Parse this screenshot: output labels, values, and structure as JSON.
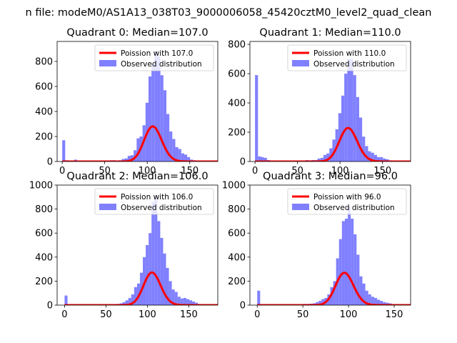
{
  "suptitle": "n file: modeM0/AS1A13_038T03_9000006058_45420cztM0_level2_quad_clean",
  "colors": {
    "poisson_line": "#ff0000",
    "observed_bars": "#8080ff",
    "axes": "#000000"
  },
  "chart_data": [
    {
      "type": "bar",
      "title": "Quadrant 0: Median=107.0",
      "median": 107.0,
      "xlim": [
        -6,
        183
      ],
      "ylim": [
        0,
        960
      ],
      "xticks": [
        0,
        50,
        100,
        150
      ],
      "yticks": [
        0,
        200,
        400,
        600,
        800
      ],
      "bin_width": 3.5,
      "legend": {
        "location": "top-right",
        "entries": [
          "Poission with 107.0",
          "Observed distribution"
        ]
      },
      "observed": [
        [
          0,
          170
        ],
        [
          3.5,
          10
        ],
        [
          7,
          5
        ],
        [
          10.5,
          3
        ],
        [
          14,
          15
        ],
        [
          17.5,
          5
        ],
        [
          21,
          3
        ],
        [
          56,
          10
        ],
        [
          59.5,
          10
        ],
        [
          63,
          8
        ],
        [
          66.5,
          10
        ],
        [
          70,
          20
        ],
        [
          73.5,
          25
        ],
        [
          77,
          45
        ],
        [
          80.5,
          50
        ],
        [
          84,
          90
        ],
        [
          87.5,
          185
        ],
        [
          91,
          200
        ],
        [
          94.5,
          290
        ],
        [
          98,
          470
        ],
        [
          101.5,
          680
        ],
        [
          105,
          780
        ],
        [
          108.5,
          880
        ],
        [
          112,
          840
        ],
        [
          115.5,
          690
        ],
        [
          119,
          570
        ],
        [
          122.5,
          380
        ],
        [
          126,
          240
        ],
        [
          129.5,
          180
        ],
        [
          133,
          115
        ],
        [
          136.5,
          100
        ],
        [
          140,
          65
        ],
        [
          143.5,
          55
        ],
        [
          147,
          35
        ],
        [
          150.5,
          15
        ],
        [
          154,
          10
        ],
        [
          157.5,
          8
        ],
        [
          161,
          5
        ],
        [
          164.5,
          3
        ],
        [
          168,
          3
        ]
      ]
    },
    {
      "type": "bar",
      "title": "Quadrant 1: Median=110.0",
      "median": 110.0,
      "xlim": [
        -6,
        183
      ],
      "ylim": [
        0,
        820
      ],
      "xticks": [
        0,
        50,
        100,
        150
      ],
      "yticks": [
        0,
        200,
        400,
        600,
        800
      ],
      "bin_width": 3.5,
      "legend": {
        "location": "top-right",
        "entries": [
          "Poission with 110.0",
          "Observed distribution"
        ]
      },
      "observed": [
        [
          0,
          590
        ],
        [
          3.5,
          35
        ],
        [
          7,
          30
        ],
        [
          10.5,
          25
        ],
        [
          14,
          10
        ],
        [
          17.5,
          5
        ],
        [
          59.5,
          10
        ],
        [
          63,
          8
        ],
        [
          66.5,
          10
        ],
        [
          70,
          10
        ],
        [
          73.5,
          20
        ],
        [
          77,
          25
        ],
        [
          80.5,
          45
        ],
        [
          84,
          55
        ],
        [
          87.5,
          90
        ],
        [
          91,
          150
        ],
        [
          94.5,
          220
        ],
        [
          98,
          330
        ],
        [
          101.5,
          450
        ],
        [
          105,
          600
        ],
        [
          108.5,
          700
        ],
        [
          112,
          700
        ],
        [
          115.5,
          590
        ],
        [
          119,
          440
        ],
        [
          122.5,
          300
        ],
        [
          126,
          170
        ],
        [
          129.5,
          105
        ],
        [
          133,
          70
        ],
        [
          136.5,
          60
        ],
        [
          140,
          45
        ],
        [
          143.5,
          30
        ],
        [
          147,
          30
        ],
        [
          150.5,
          20
        ],
        [
          154,
          15
        ],
        [
          157.5,
          8
        ],
        [
          161,
          5
        ],
        [
          164.5,
          3
        ],
        [
          168,
          3
        ],
        [
          171.5,
          2
        ]
      ]
    },
    {
      "type": "bar",
      "title": "Quadrant 2: Median=106.0",
      "median": 106.0,
      "xlim": [
        -9,
        185
      ],
      "ylim": [
        0,
        1000
      ],
      "xticks": [
        0,
        50,
        100,
        150
      ],
      "yticks": [
        0,
        200,
        400,
        600,
        800,
        1000
      ],
      "bin_width": 3.5,
      "legend": {
        "location": "top-right",
        "entries": [
          "Poission with 106.0",
          "Observed distribution"
        ]
      },
      "observed": [
        [
          0,
          80
        ],
        [
          3.5,
          8
        ],
        [
          7,
          5
        ],
        [
          10.5,
          3
        ],
        [
          56,
          5
        ],
        [
          59.5,
          8
        ],
        [
          63,
          10
        ],
        [
          66.5,
          15
        ],
        [
          70,
          25
        ],
        [
          73.5,
          40
        ],
        [
          77,
          60
        ],
        [
          80.5,
          90
        ],
        [
          84,
          150
        ],
        [
          87.5,
          180
        ],
        [
          91,
          270
        ],
        [
          94.5,
          400
        ],
        [
          98,
          500
        ],
        [
          101.5,
          600
        ],
        [
          105,
          860
        ],
        [
          108.5,
          910
        ],
        [
          112,
          700
        ],
        [
          115.5,
          560
        ],
        [
          119,
          430
        ],
        [
          122.5,
          310
        ],
        [
          126,
          200
        ],
        [
          129.5,
          130
        ],
        [
          133,
          110
        ],
        [
          136.5,
          70
        ],
        [
          140,
          55
        ],
        [
          143.5,
          60
        ],
        [
          147,
          50
        ],
        [
          150.5,
          40
        ],
        [
          154,
          30
        ],
        [
          157.5,
          20
        ],
        [
          161,
          10
        ],
        [
          164.5,
          8
        ],
        [
          168,
          5
        ],
        [
          171.5,
          3
        ]
      ]
    },
    {
      "type": "bar",
      "title": "Quadrant 3: Median=96.0",
      "median": 96.0,
      "xlim": [
        -8,
        168
      ],
      "ylim": [
        0,
        1000
      ],
      "xticks": [
        0,
        50,
        100,
        150
      ],
      "yticks": [
        0,
        200,
        400,
        600,
        800,
        1000
      ],
      "bin_width": 3.2,
      "legend": {
        "location": "top-right",
        "entries": [
          "Poission with 96.0",
          "Observed distribution"
        ]
      },
      "observed": [
        [
          0,
          120
        ],
        [
          3.2,
          8
        ],
        [
          6.4,
          5
        ],
        [
          9.6,
          3
        ],
        [
          48,
          8
        ],
        [
          51.2,
          10
        ],
        [
          54.4,
          10
        ],
        [
          57.6,
          12
        ],
        [
          60.8,
          15
        ],
        [
          64,
          25
        ],
        [
          67.2,
          35
        ],
        [
          70.4,
          50
        ],
        [
          73.6,
          60
        ],
        [
          76.8,
          90
        ],
        [
          80,
          150
        ],
        [
          83.2,
          200
        ],
        [
          86.4,
          390
        ],
        [
          89.6,
          550
        ],
        [
          92.8,
          700
        ],
        [
          96,
          720
        ],
        [
          99.2,
          820
        ],
        [
          102.4,
          720
        ],
        [
          105.6,
          590
        ],
        [
          108.8,
          420
        ],
        [
          112,
          240
        ],
        [
          115.2,
          180
        ],
        [
          118.4,
          120
        ],
        [
          121.6,
          90
        ],
        [
          124.8,
          70
        ],
        [
          128,
          60
        ],
        [
          131.2,
          45
        ],
        [
          134.4,
          35
        ],
        [
          137.6,
          25
        ],
        [
          140.8,
          20
        ],
        [
          144,
          15
        ],
        [
          147.2,
          8
        ],
        [
          150.4,
          5
        ],
        [
          153.6,
          3
        ],
        [
          156.8,
          2
        ]
      ]
    }
  ]
}
